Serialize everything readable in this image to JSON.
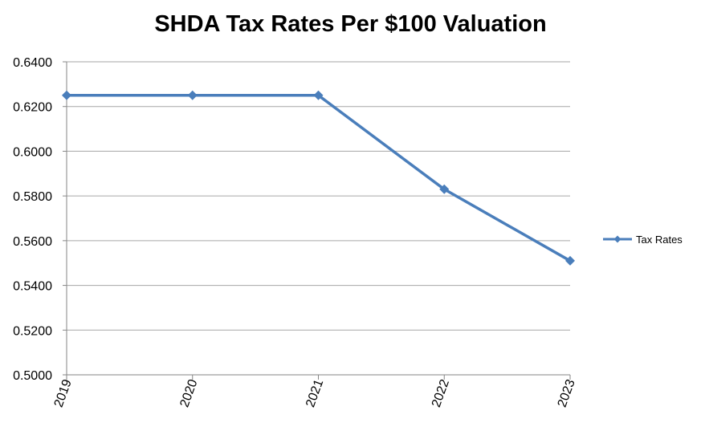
{
  "chart_data": {
    "type": "line",
    "title": "SHDA Tax Rates Per $100 Valuation",
    "categories": [
      "2019",
      "2020",
      "2021",
      "2022",
      "2023"
    ],
    "series": [
      {
        "name": "Tax Rates",
        "values": [
          0.625,
          0.625,
          0.625,
          0.583,
          0.551
        ]
      }
    ],
    "ylim": [
      0.5,
      0.64
    ],
    "y_ticks": [
      "0.5000",
      "0.5200",
      "0.5400",
      "0.5600",
      "0.5800",
      "0.6000",
      "0.6200",
      "0.6400"
    ],
    "grid": true,
    "legend_position": "right",
    "colors": {
      "series": "#4a7ebb",
      "grid": "#a6a6a6",
      "axis": "#868686"
    }
  }
}
